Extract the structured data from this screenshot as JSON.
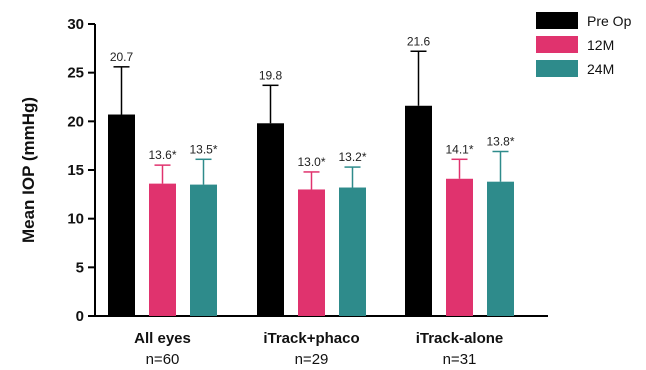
{
  "chart_data": {
    "type": "bar",
    "ylabel": "Mean IOP (mmHg)",
    "xlabel": "",
    "ylim": [
      0,
      30
    ],
    "yticks": [
      0,
      5,
      10,
      15,
      20,
      25,
      30
    ],
    "categories": [
      "All eyes",
      "iTrack+phaco",
      "iTrack-alone"
    ],
    "category_counts": [
      "n=60",
      "n=29",
      "n=31"
    ],
    "legend_position": "top-right",
    "grid": false,
    "series": [
      {
        "name": "Pre Op",
        "color": "#000000",
        "values": [
          20.7,
          19.8,
          21.6
        ],
        "error": [
          4.9,
          3.9,
          5.6
        ],
        "labels": [
          "20.7",
          "19.8",
          "21.6"
        ]
      },
      {
        "name": "12M",
        "color": "#e0336e",
        "values": [
          13.6,
          13.0,
          14.1
        ],
        "error": [
          1.9,
          1.8,
          2.0
        ],
        "labels": [
          "13.6*",
          "13.0*",
          "14.1*"
        ]
      },
      {
        "name": "24M",
        "color": "#2e8b8b",
        "values": [
          13.5,
          13.2,
          13.8
        ],
        "error": [
          2.6,
          2.1,
          3.1
        ],
        "labels": [
          "13.5*",
          "13.2*",
          "13.8*"
        ]
      }
    ]
  }
}
